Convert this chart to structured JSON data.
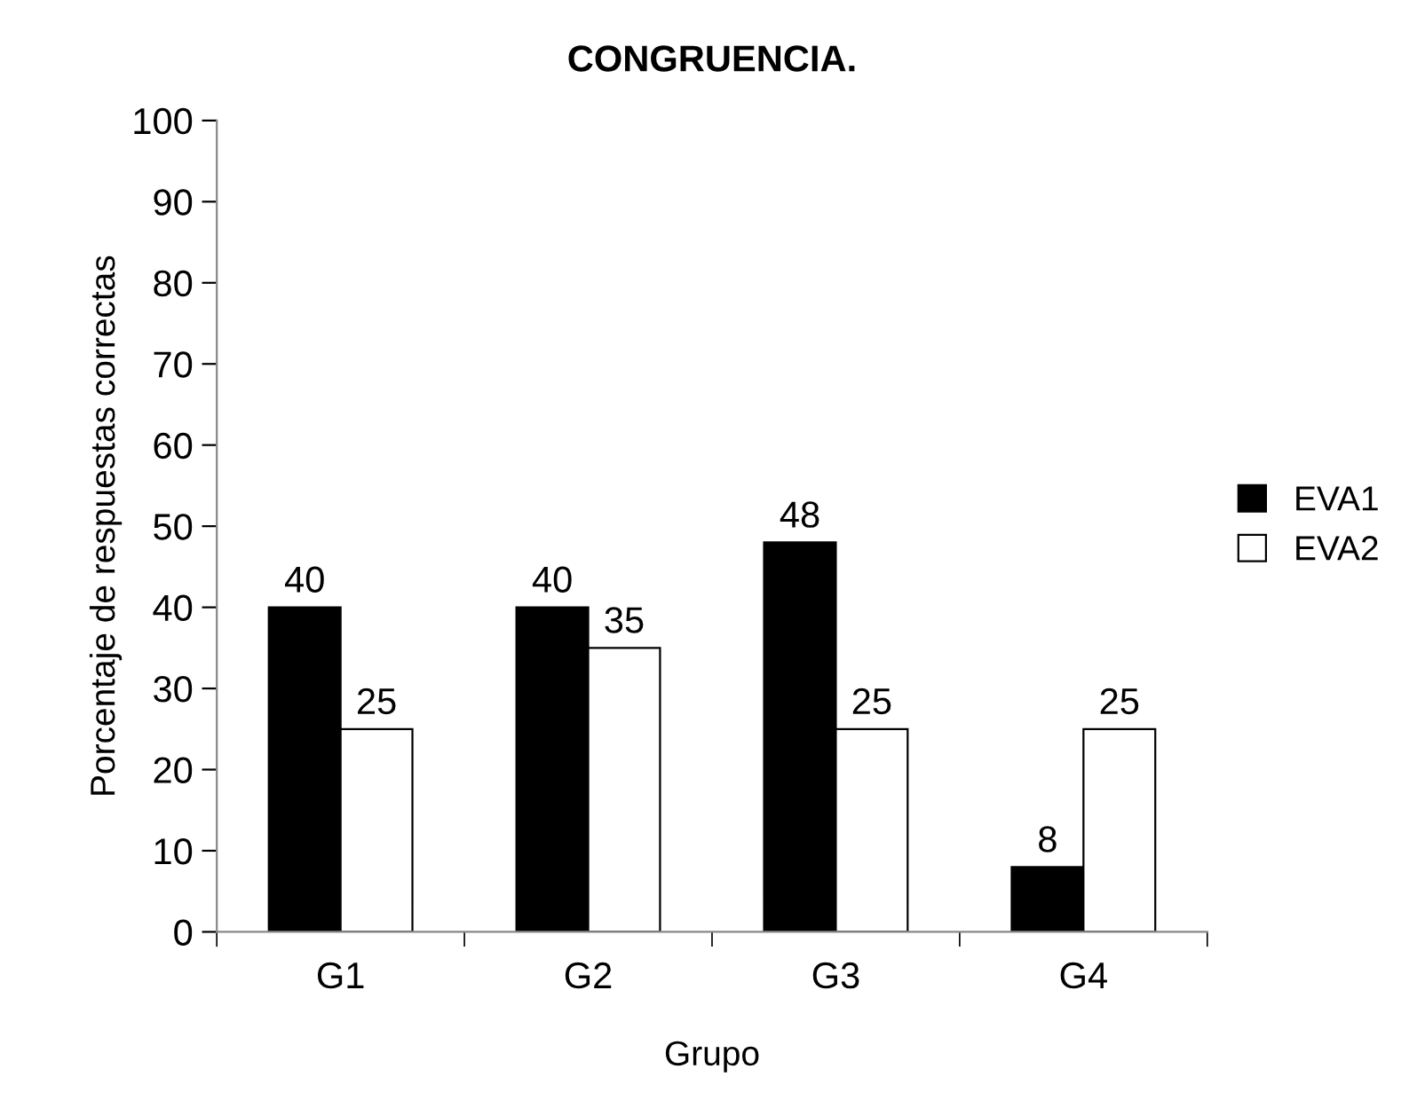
{
  "chart_data": {
    "type": "bar",
    "title": "CONGRUENCIA.",
    "xlabel": "Grupo",
    "ylabel": "Porcentaje de respuestas correctas",
    "categories": [
      "G1",
      "G2",
      "G3",
      "G4"
    ],
    "series": [
      {
        "name": "EVA1",
        "color": "#000000",
        "values": [
          40,
          40,
          48,
          8
        ]
      },
      {
        "name": "EVA2",
        "color": "#ffffff",
        "values": [
          25,
          35,
          25,
          25
        ]
      }
    ],
    "ylim": [
      0,
      100
    ],
    "yticks": [
      0,
      10,
      20,
      30,
      40,
      50,
      60,
      70,
      80,
      90,
      100
    ],
    "data_labels": true,
    "legend": "right",
    "grid": false
  }
}
